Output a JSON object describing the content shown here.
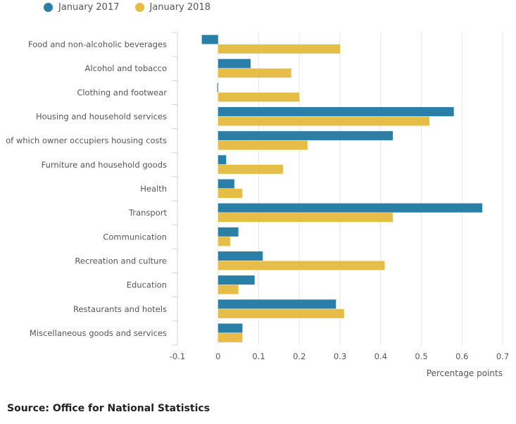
{
  "chart_data": {
    "type": "bar",
    "orientation": "horizontal",
    "title": "",
    "xlabel": "Percentage points",
    "ylabel": "",
    "xlim": [
      -0.1,
      0.7
    ],
    "xticks": [
      -0.1,
      0,
      0.1,
      0.2,
      0.3,
      0.4,
      0.5,
      0.6,
      0.7
    ],
    "xtick_labels": [
      "-0.1",
      "0",
      "0.1",
      "0.2",
      "0.3",
      "0.4",
      "0.5",
      "0.6",
      "0.7"
    ],
    "grid": true,
    "legend_position": "top-left",
    "categories": [
      "Food and non-alcoholic beverages",
      "Alcohol and tobacco",
      "Clothing and footwear",
      "Housing and household services",
      "of which owner occupiers housing costs",
      "Furniture and household goods",
      "Health",
      "Transport",
      "Communication",
      "Recreation and culture",
      "Education",
      "Restaurants and hotels",
      "Miscellaneous goods and services"
    ],
    "series": [
      {
        "name": "January 2017",
        "color": "#2a7fa9",
        "values": [
          -0.04,
          0.08,
          -0.002,
          0.58,
          0.43,
          0.02,
          0.04,
          0.65,
          0.05,
          0.11,
          0.09,
          0.29,
          0.06
        ]
      },
      {
        "name": "January 2018",
        "color": "#e6bd47",
        "values": [
          0.3,
          0.18,
          0.2,
          0.52,
          0.22,
          0.16,
          0.06,
          0.43,
          0.03,
          0.41,
          0.05,
          0.31,
          0.06
        ]
      }
    ]
  },
  "legend": [
    {
      "label": "January 2017",
      "color": "#2a7fa9"
    },
    {
      "label": "January 2018",
      "color": "#e6bd47"
    }
  ],
  "source": "Source: Office for National Statistics"
}
